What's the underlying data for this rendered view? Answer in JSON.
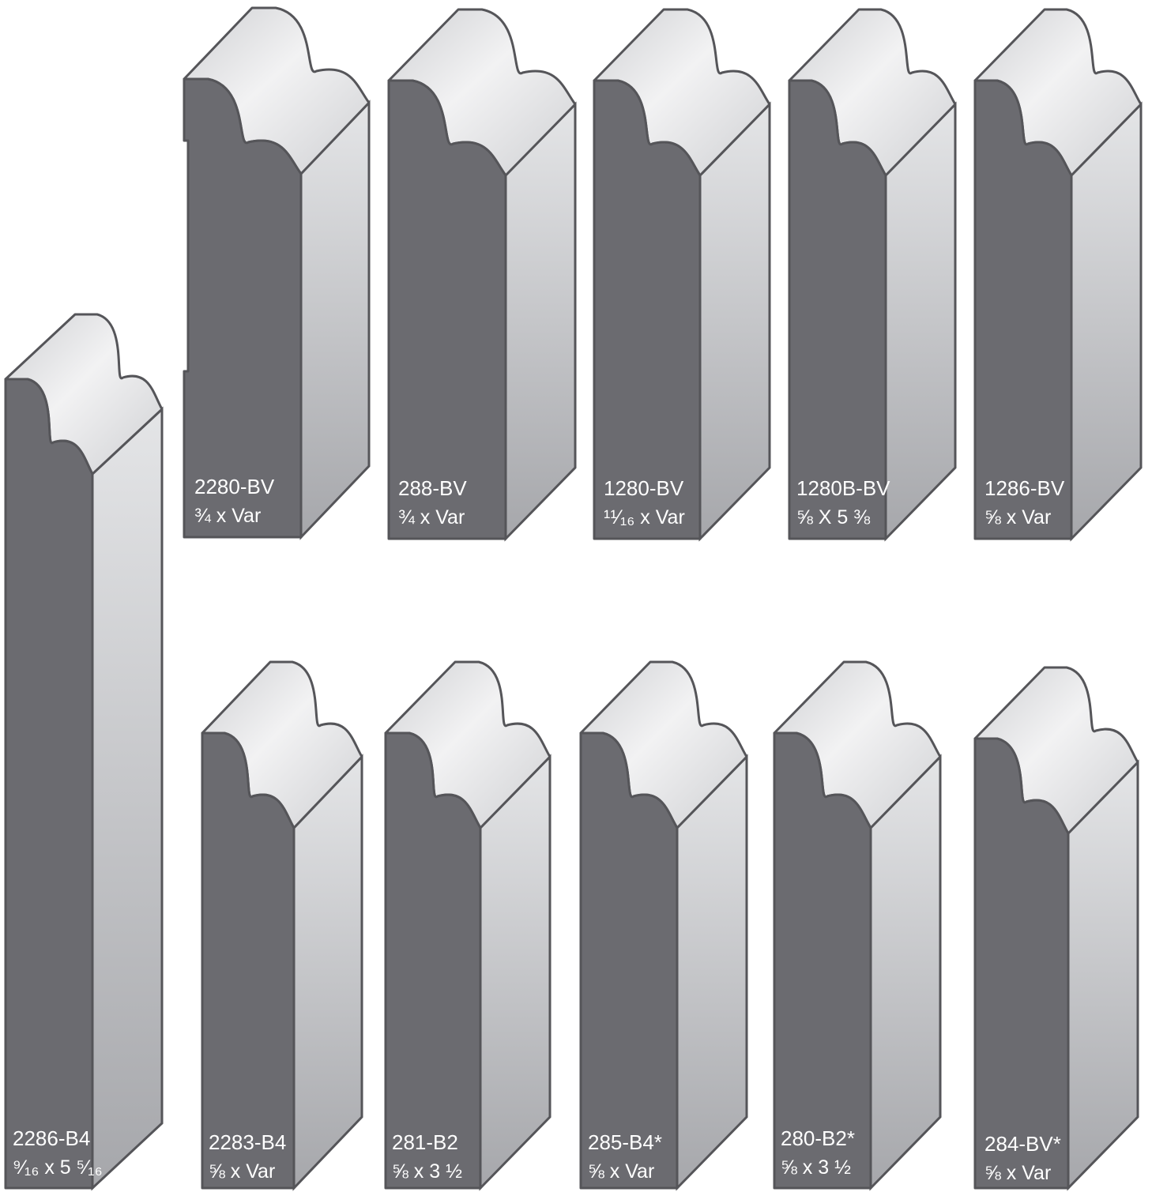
{
  "colors": {
    "profile_face": "#6b6b70",
    "outline": "#555559",
    "top_light": "#f2f2f3",
    "top_mid": "#cfd0d3",
    "side_light": "#e4e5e7",
    "side_dark": "#a6a7ab"
  },
  "moldings": [
    {
      "id": "2286-B4",
      "code": "2286-B4",
      "size": "⁹⁄₁₆ x 5 ⁵⁄₁₆"
    },
    {
      "id": "2280-BV",
      "code": "2280-BV",
      "size": "¾ x Var"
    },
    {
      "id": "288-BV",
      "code": "288-BV",
      "size": "¾ x Var"
    },
    {
      "id": "1280-BV",
      "code": "1280-BV",
      "size": "¹¹⁄₁₆ x Var"
    },
    {
      "id": "1280B-BV",
      "code": "1280B-BV",
      "size": "⅝ X 5 ⅜"
    },
    {
      "id": "1286-BV",
      "code": "1286-BV",
      "size": "⅝ x Var"
    },
    {
      "id": "2283-B4",
      "code": "2283-B4",
      "size": "⅝ x Var"
    },
    {
      "id": "281-B2",
      "code": "281-B2",
      "size": "⅝ x 3 ½"
    },
    {
      "id": "285-B4",
      "code": "285-B4*",
      "size": "⅝ x Var"
    },
    {
      "id": "280-B2",
      "code": "280-B2*",
      "size": "⅝ x 3 ½"
    },
    {
      "id": "284-BV",
      "code": "284-BV*",
      "size": "⅝ x Var"
    }
  ]
}
